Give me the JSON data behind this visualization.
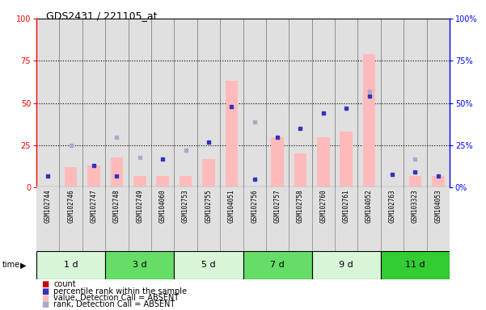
{
  "title": "GDS2431 / 221105_at",
  "samples": [
    "GSM102744",
    "GSM102746",
    "GSM102747",
    "GSM102748",
    "GSM102749",
    "GSM104060",
    "GSM102753",
    "GSM102755",
    "GSM104051",
    "GSM102756",
    "GSM102757",
    "GSM102758",
    "GSM102760",
    "GSM102761",
    "GSM104052",
    "GSM102763",
    "GSM103323",
    "GSM104053"
  ],
  "time_groups": [
    {
      "label": "1 d",
      "start": 0,
      "end": 3,
      "color": "#d8f5d8"
    },
    {
      "label": "3 d",
      "start": 3,
      "end": 6,
      "color": "#66dd66"
    },
    {
      "label": "5 d",
      "start": 6,
      "end": 9,
      "color": "#d8f5d8"
    },
    {
      "label": "7 d",
      "start": 9,
      "end": 12,
      "color": "#66dd66"
    },
    {
      "label": "9 d",
      "start": 12,
      "end": 15,
      "color": "#d8f5d8"
    },
    {
      "label": "11 d",
      "start": 15,
      "end": 18,
      "color": "#33cc33"
    }
  ],
  "bar_values_pink": [
    0,
    12,
    13,
    18,
    7,
    7,
    7,
    17,
    63,
    0,
    30,
    20,
    30,
    33,
    79,
    0,
    7,
    7
  ],
  "scatter_blue_dark": [
    7,
    0,
    13,
    7,
    0,
    17,
    0,
    27,
    48,
    5,
    30,
    35,
    44,
    47,
    54,
    8,
    9,
    7
  ],
  "scatter_blue_light": [
    0,
    25,
    0,
    30,
    18,
    0,
    22,
    0,
    0,
    39,
    0,
    0,
    0,
    0,
    57,
    0,
    17,
    0
  ],
  "ylim": [
    0,
    100
  ],
  "yticks": [
    0,
    25,
    50,
    75,
    100
  ],
  "bar_color_pink": "#ffbbbb",
  "scatter_color_dark_blue": "#3333bb",
  "scatter_color_light_blue": "#aaaacc",
  "legend_items": [
    {
      "label": "count",
      "color": "#cc0000"
    },
    {
      "label": "percentile rank within the sample",
      "color": "#3333bb"
    },
    {
      "label": "value, Detection Call = ABSENT",
      "color": "#ffbbbb"
    },
    {
      "label": "rank, Detection Call = ABSENT",
      "color": "#aaaacc"
    }
  ]
}
